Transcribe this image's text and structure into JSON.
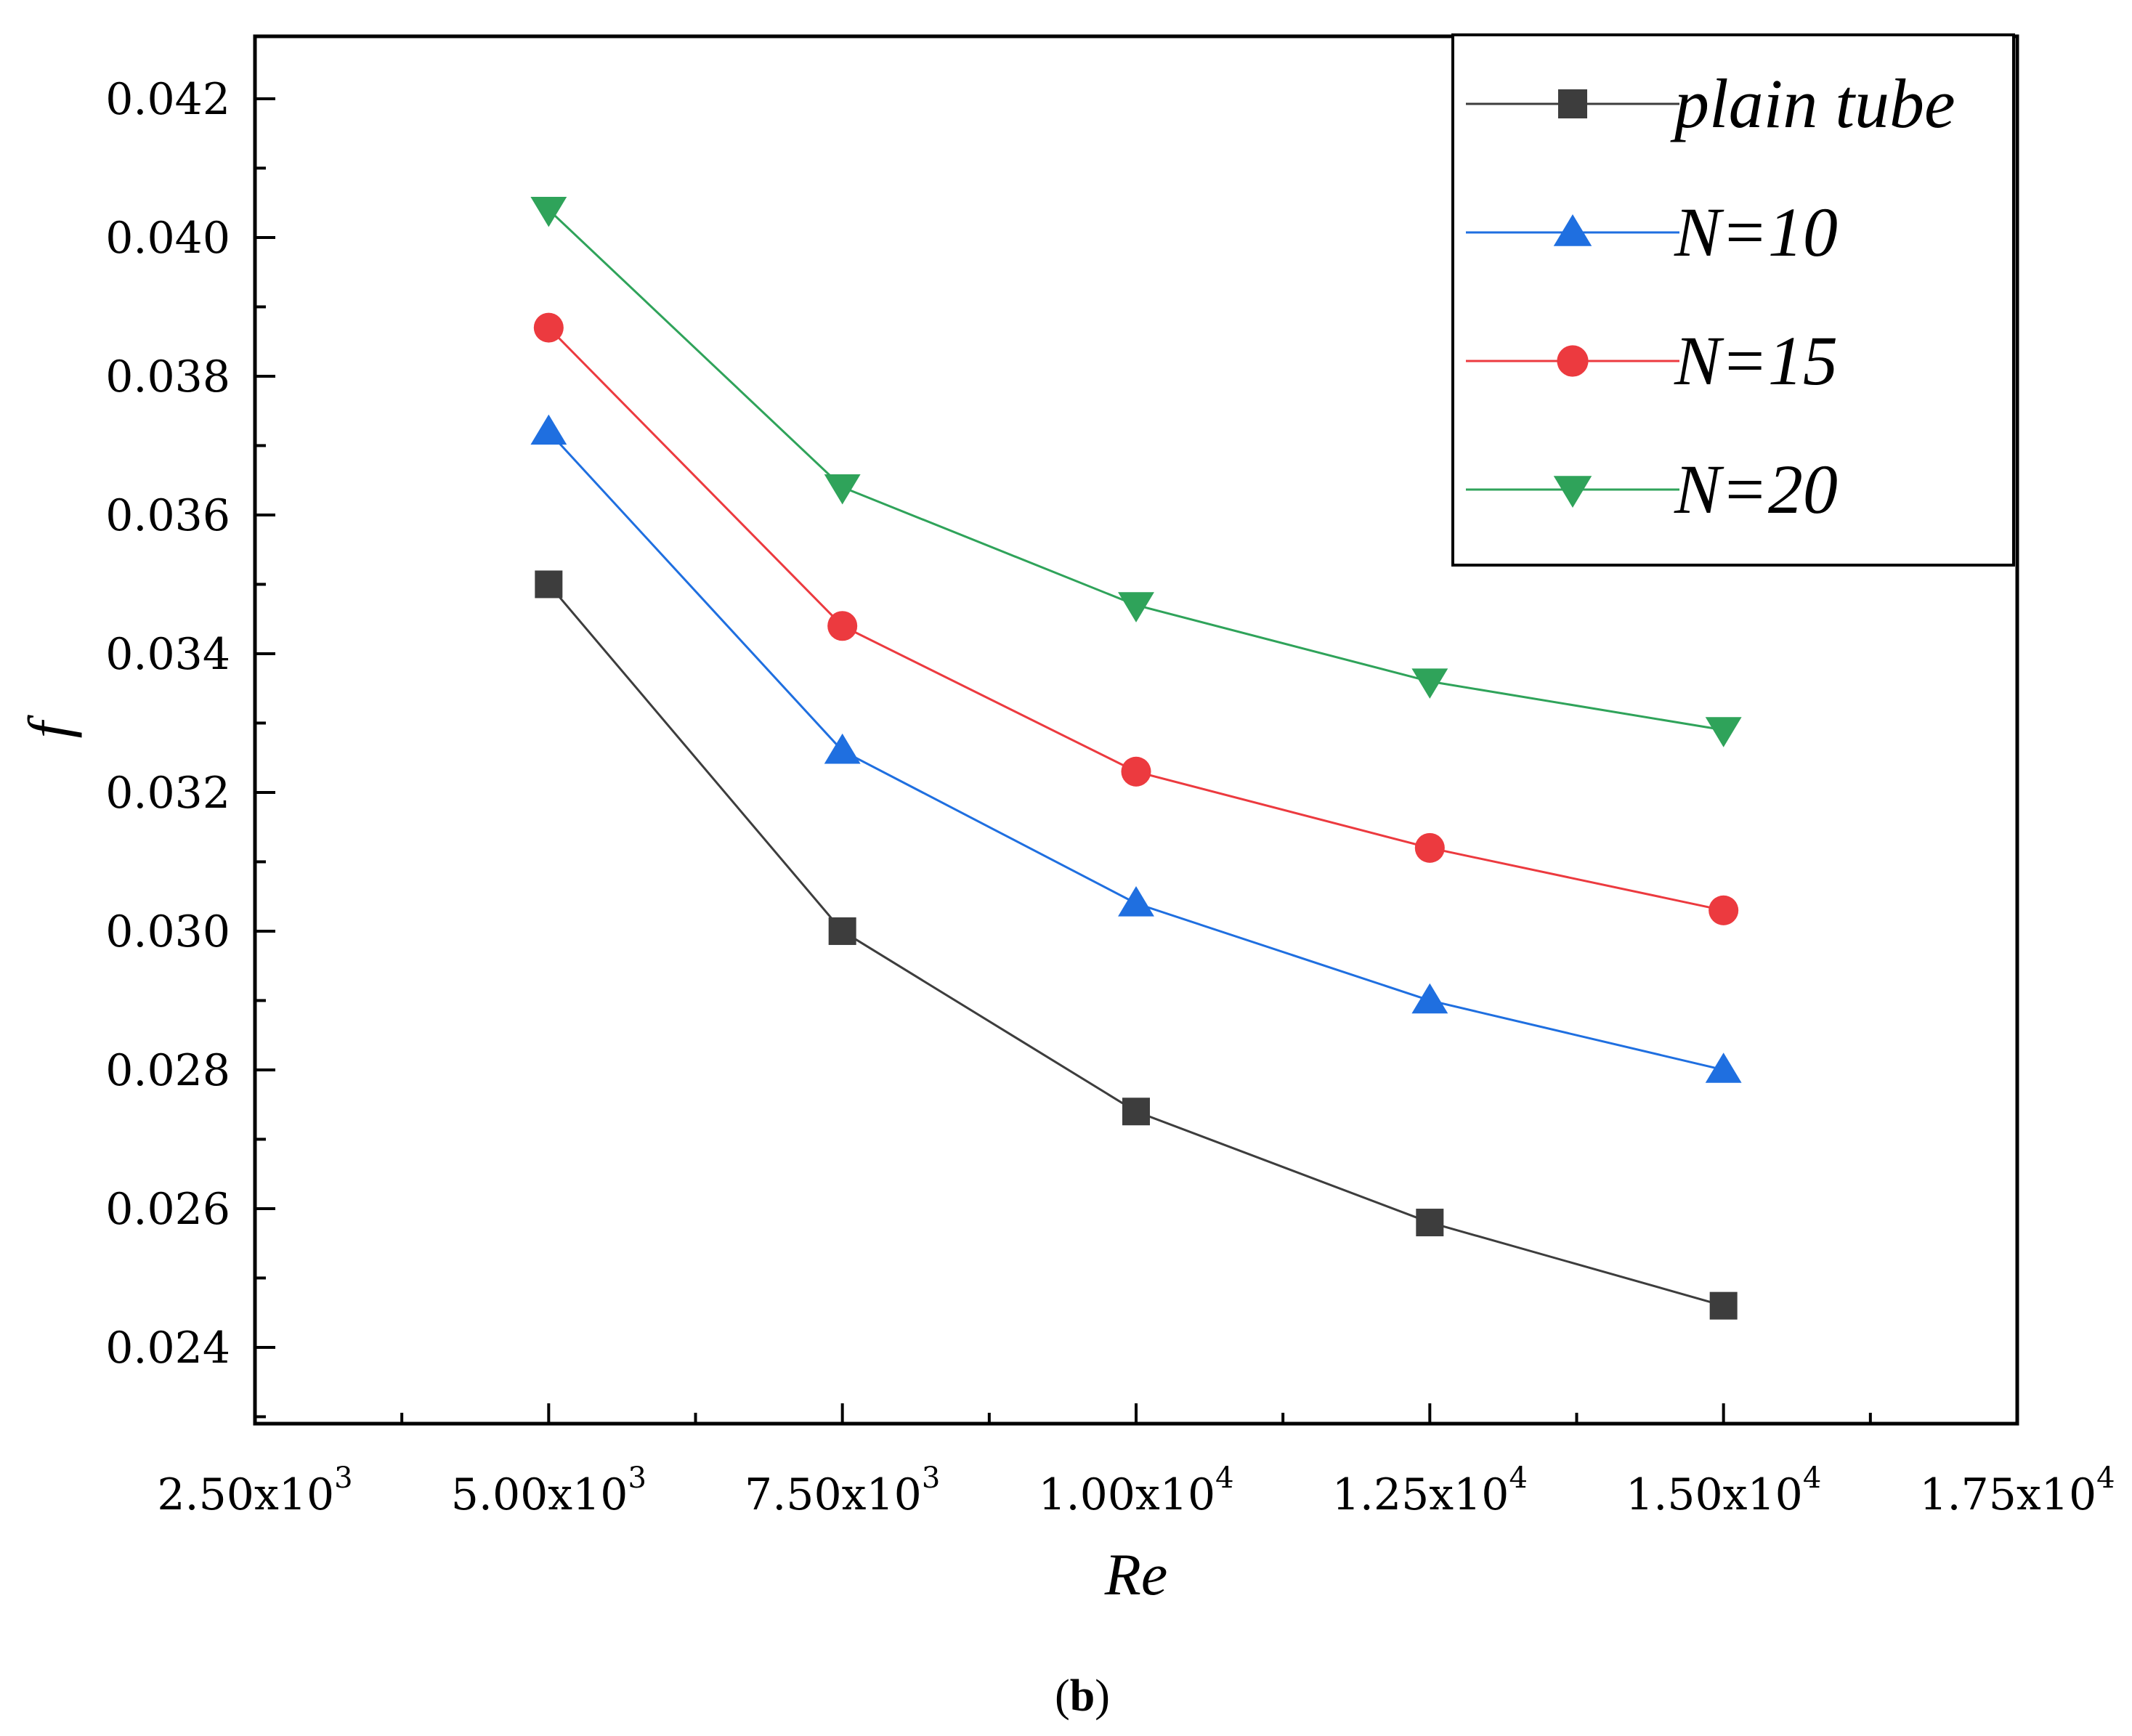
{
  "chart_data": {
    "type": "line",
    "title": "",
    "caption": {
      "open": "(",
      "letter": "b",
      "close": ")"
    },
    "xlabel": "Re",
    "ylabel": "f",
    "xlim": [
      2500,
      17500
    ],
    "ylim": [
      0.0229,
      0.0429
    ],
    "x_ticks": [
      {
        "value": 2500,
        "mantissa": "2.50",
        "exp": "3"
      },
      {
        "value": 5000,
        "mantissa": "5.00",
        "exp": "3"
      },
      {
        "value": 7500,
        "mantissa": "7.50",
        "exp": "3"
      },
      {
        "value": 10000,
        "mantissa": "1.00",
        "exp": "4"
      },
      {
        "value": 12500,
        "mantissa": "1.25",
        "exp": "4"
      },
      {
        "value": 15000,
        "mantissa": "1.50",
        "exp": "4"
      },
      {
        "value": 17500,
        "mantissa": "1.75",
        "exp": "4"
      }
    ],
    "y_ticks": [
      {
        "value": 0.024,
        "label": "0.024"
      },
      {
        "value": 0.026,
        "label": "0.026"
      },
      {
        "value": 0.028,
        "label": "0.028"
      },
      {
        "value": 0.03,
        "label": "0.030"
      },
      {
        "value": 0.032,
        "label": "0.032"
      },
      {
        "value": 0.034,
        "label": "0.034"
      },
      {
        "value": 0.036,
        "label": "0.036"
      },
      {
        "value": 0.038,
        "label": "0.038"
      },
      {
        "value": 0.04,
        "label": "0.040"
      },
      {
        "value": 0.042,
        "label": "0.042"
      }
    ],
    "x": [
      5000,
      7500,
      10000,
      12500,
      15000
    ],
    "legend_position": "top-right",
    "series": [
      {
        "name": "plain tube",
        "color": "#3d3d3d",
        "marker": "square",
        "values": [
          0.035,
          0.03,
          0.0274,
          0.0258,
          0.0246
        ]
      },
      {
        "name": "N=10",
        "color": "#1f6fe0",
        "marker": "triangle-up",
        "values": [
          0.0372,
          0.0326,
          0.0304,
          0.029,
          0.028
        ]
      },
      {
        "name": "N=15",
        "color": "#ec3a3f",
        "marker": "circle",
        "values": [
          0.0387,
          0.0344,
          0.0323,
          0.0312,
          0.0303
        ]
      },
      {
        "name": "N=20",
        "color": "#2fa35a",
        "marker": "triangle-down",
        "values": [
          0.0404,
          0.0364,
          0.0347,
          0.0336,
          0.0329
        ]
      }
    ]
  }
}
